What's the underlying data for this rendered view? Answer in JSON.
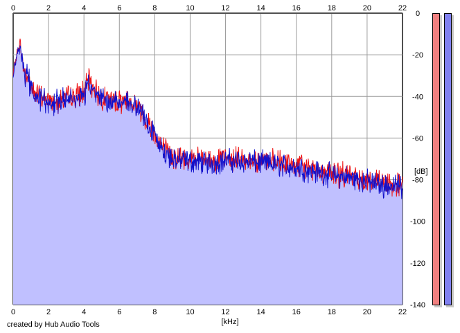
{
  "chart_data": {
    "type": "area",
    "title": "",
    "xlabel": "[kHz]",
    "ylabel": "[dB]",
    "xlim": [
      0,
      22
    ],
    "ylim": [
      -140,
      0
    ],
    "x_ticks": [
      0,
      2,
      4,
      6,
      8,
      10,
      12,
      14,
      16,
      18,
      20,
      22
    ],
    "y_ticks": [
      0,
      -20,
      -40,
      -60,
      -80,
      -100,
      -120,
      -140
    ],
    "y_tick_labels": [
      "0",
      "-20",
      "-40",
      "-60",
      "-80",
      "-100",
      "-120",
      "-140"
    ],
    "grid": true,
    "fill_color": "#c0c0ff",
    "series": [
      {
        "color": "#ee1111",
        "x": [
          0,
          0.1,
          0.2,
          0.3,
          0.4,
          0.5,
          0.6,
          0.8,
          1.0,
          1.2,
          1.5,
          1.8,
          2.0,
          2.5,
          3.0,
          3.5,
          4.0,
          4.3,
          4.5,
          4.8,
          5.0,
          5.3,
          5.6,
          6.0,
          6.5,
          7.0,
          7.3,
          7.6,
          7.9,
          8.2,
          8.5,
          9.0,
          9.5,
          10.0,
          11.0,
          12.0,
          13.0,
          14.0,
          15.0,
          16.0,
          17.0,
          18.0,
          19.0,
          20.0,
          21.0,
          22.0
        ],
        "values": [
          -30,
          -24,
          -20,
          -17,
          -14,
          -22,
          -28,
          -30,
          -34,
          -38,
          -40,
          -41,
          -42,
          -42,
          -41,
          -40,
          -38,
          -32,
          -35,
          -39,
          -40,
          -41,
          -42,
          -42,
          -42,
          -44,
          -48,
          -52,
          -56,
          -61,
          -65,
          -69,
          -70,
          -70,
          -71,
          -70,
          -70,
          -71,
          -72,
          -73,
          -75,
          -77,
          -78,
          -80,
          -82,
          -82
        ]
      },
      {
        "color": "#1111cc",
        "x": [
          0,
          0.1,
          0.2,
          0.3,
          0.4,
          0.5,
          0.6,
          0.8,
          1.0,
          1.2,
          1.5,
          1.8,
          2.0,
          2.5,
          3.0,
          3.5,
          4.0,
          4.3,
          4.5,
          4.8,
          5.0,
          5.3,
          5.6,
          6.0,
          6.5,
          7.0,
          7.3,
          7.6,
          7.9,
          8.2,
          8.5,
          9.0,
          9.5,
          10.0,
          11.0,
          12.0,
          13.0,
          14.0,
          15.0,
          16.0,
          17.0,
          18.0,
          19.0,
          20.0,
          21.0,
          22.0
        ],
        "values": [
          -31,
          -25,
          -21,
          -18,
          -16,
          -23,
          -28,
          -31,
          -35,
          -39,
          -41,
          -42,
          -43,
          -43,
          -42,
          -41,
          -39,
          -35,
          -36,
          -40,
          -41,
          -42,
          -43,
          -43,
          -43,
          -45,
          -49,
          -53,
          -57,
          -62,
          -66,
          -70,
          -71,
          -71,
          -72,
          -71,
          -71,
          -72,
          -73,
          -74,
          -76,
          -78,
          -79,
          -81,
          -83,
          -83
        ]
      }
    ]
  },
  "footer": {
    "credit": "created by Hub Audio Tools"
  },
  "meters": {
    "left_color": "#f08080",
    "right_color": "#8080f0"
  }
}
